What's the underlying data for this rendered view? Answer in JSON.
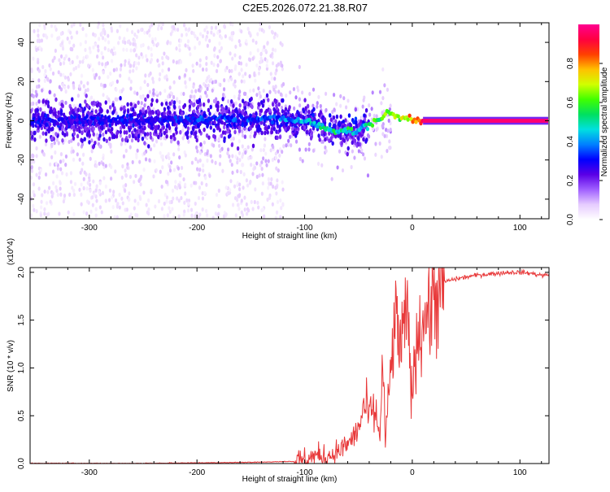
{
  "title": "C2E5.2026.072.21.38.R07",
  "chart_data": [
    {
      "type": "heatmap",
      "xlabel": "Height of straight line (km)",
      "ylabel": "Frequency (Hz)",
      "xlim": [
        -355,
        127
      ],
      "ylim": [
        -50,
        50
      ],
      "xticks": [
        -300,
        -200,
        -100,
        0,
        100
      ],
      "yticks": [
        -40,
        -20,
        0,
        20,
        40
      ],
      "colorbar": {
        "label": "Normalized spectral amplitude",
        "range": [
          0,
          1
        ],
        "ticks": [
          0.0,
          0.2,
          0.4,
          0.6,
          0.8
        ],
        "colors": [
          "#ffffff",
          "#e6ccff",
          "#a060ff",
          "#5a00e6",
          "#0000ff",
          "#0080ff",
          "#00e0e0",
          "#00e060",
          "#40ff00",
          "#d0ff00",
          "#ffc000",
          "#ff4000",
          "#ff0040",
          "#ff0090"
        ]
      },
      "ridge": {
        "x": [
          -355,
          -300,
          -250,
          -200,
          -150,
          -120,
          -100,
          -90,
          -80,
          -70,
          -60,
          -50,
          -45,
          -40,
          -35,
          -30,
          -25,
          -20,
          -15,
          -10,
          -5,
          0,
          5,
          10,
          127
        ],
        "frequency": [
          0,
          0,
          0,
          1,
          1,
          1,
          0,
          -2,
          -4,
          -5,
          -5,
          -6,
          -3,
          -2,
          0,
          1,
          3,
          4,
          2,
          1,
          2,
          1,
          1,
          0,
          0
        ],
        "amplitude": [
          0.3,
          0.3,
          0.32,
          0.35,
          0.35,
          0.4,
          0.45,
          0.5,
          0.55,
          0.55,
          0.55,
          0.5,
          0.45,
          0.55,
          0.6,
          0.65,
          0.7,
          0.7,
          0.7,
          0.75,
          0.8,
          0.85,
          0.9,
          0.97,
          0.97
        ]
      }
    },
    {
      "type": "line",
      "xlabel": "Height of straight line (km)",
      "ylabel": "SNR (10 * v/v)",
      "y_multiplier": "(x10^4)",
      "xlim": [
        -355,
        127
      ],
      "ylim": [
        0,
        2.05
      ],
      "xticks": [
        -300,
        -200,
        -100,
        0,
        100
      ],
      "yticks": [
        0.0,
        0.5,
        1.0,
        1.5,
        2.0
      ],
      "series": [
        {
          "name": "SNR",
          "color": "#e8393a",
          "x": [
            -355,
            -300,
            -250,
            -200,
            -150,
            -110,
            -100,
            -90,
            -80,
            -70,
            -60,
            -50,
            -45,
            -40,
            -35,
            -30,
            -27,
            -25,
            -20,
            -15,
            -10,
            -5,
            0,
            5,
            10,
            15,
            20,
            25,
            30,
            40,
            50,
            60,
            70,
            80,
            90,
            100,
            110,
            120,
            127
          ],
          "y": [
            0.0,
            0.0,
            0.0,
            0.005,
            0.01,
            0.02,
            0.04,
            0.08,
            0.07,
            0.12,
            0.2,
            0.35,
            0.6,
            0.5,
            0.55,
            0.3,
            1.1,
            0.2,
            1.0,
            1.5,
            1.2,
            1.6,
            0.7,
            1.4,
            1.5,
            1.6,
            1.75,
            1.85,
            1.9,
            1.93,
            1.95,
            1.97,
            1.98,
            1.99,
            2.0,
            2.0,
            1.99,
            1.97,
            1.97
          ]
        }
      ]
    }
  ]
}
